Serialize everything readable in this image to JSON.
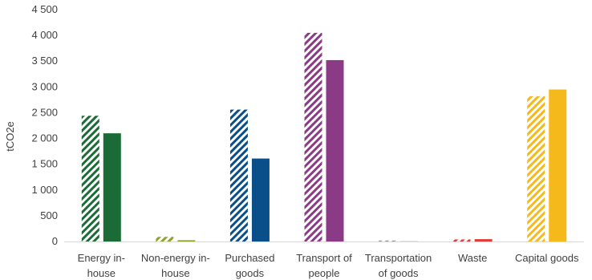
{
  "chart_data": {
    "type": "bar",
    "title": "",
    "xlabel": "",
    "ylabel": "tCO2e",
    "ylim": [
      0,
      4500
    ],
    "yticks": [
      0,
      500,
      1000,
      1500,
      2000,
      2500,
      3000,
      3500,
      4000,
      4500
    ],
    "ytick_labels": [
      "0",
      "500",
      "1 000",
      "1 500",
      "2 000",
      "2 500",
      "3 000",
      "3 500",
      "4 000",
      "4 500"
    ],
    "grid": false,
    "legend": "none",
    "categories": [
      [
        "Energy in-",
        "house"
      ],
      [
        "Non-energy in-",
        "house"
      ],
      [
        "Purchased",
        "goods"
      ],
      [
        "Transport of",
        "people"
      ],
      [
        "Transportation",
        "of goods"
      ],
      [
        "Waste"
      ],
      [
        "Capital goods"
      ]
    ],
    "colors": [
      "#1a6b35",
      "#8fa52a",
      "#0a4f8a",
      "#8b3a86",
      "#9e9e9e",
      "#e03a3a",
      "#f6b91c"
    ],
    "series": [
      {
        "pattern": "hatched",
        "values": [
          2440,
          90,
          2560,
          4050,
          20,
          40,
          2820
        ]
      },
      {
        "pattern": "solid",
        "values": [
          2100,
          25,
          1610,
          3520,
          5,
          45,
          2950
        ]
      }
    ]
  }
}
